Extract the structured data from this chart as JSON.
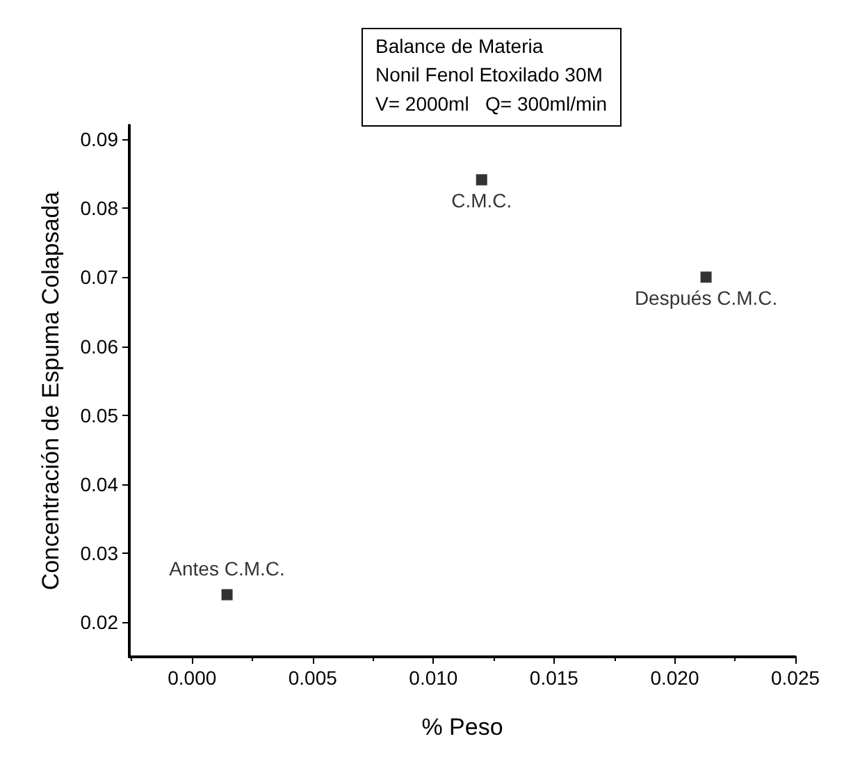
{
  "chart_data": {
    "type": "scatter",
    "title": "Balance de Materia",
    "subtitle": "Nonil Fenol Etoxilado 30M\nV= 2000ml   Q= 300ml/min",
    "xlabel": "% Peso",
    "ylabel": "Concentración de Espuma Colapsada",
    "x": [
      0.00145,
      0.012,
      0.0213
    ],
    "series": [
      {
        "color": "#000000",
        "values": [
          0.024,
          0.0841,
          0.07
        ]
      }
    ],
    "annotations": [
      {
        "text": "Antes C.M.C.",
        "x": 0.00145,
        "y": 0.024
      },
      {
        "text": "C.M.C.",
        "x": 0.012,
        "y": 0.0841
      },
      {
        "text": "Después C.M.C.",
        "x": 0.0213,
        "y": 0.07
      }
    ],
    "xlim": [
      -0.0026,
      0.025
    ],
    "xticks": [
      {
        "value": 0,
        "label": "0.000"
      },
      {
        "value": 0.005,
        "label": "0.005"
      },
      {
        "value": 0.01,
        "label": "0.010"
      },
      {
        "value": 0.015,
        "label": "0.015"
      },
      {
        "value": 0.02,
        "label": "0.020"
      },
      {
        "value": 0.025,
        "label": "0.025"
      }
    ],
    "ylim": [
      0.015,
      0.092
    ],
    "yticks": [
      0.02,
      0.03,
      0.04,
      0.05,
      0.06,
      0.07,
      0.08,
      0.09
    ],
    "grid": false,
    "marker": "square"
  }
}
